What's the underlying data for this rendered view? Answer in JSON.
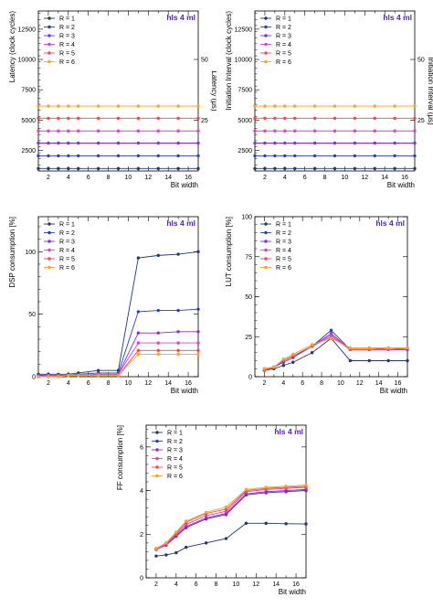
{
  "figure_tag": "hls 4 ml",
  "colors": {
    "R1": "#1f3a6e",
    "R2": "#2b3fc4",
    "R3": "#8a2be2",
    "R4": "#e040c8",
    "R5": "#f04a50",
    "R6": "#ffa21e"
  },
  "chart_data": [
    {
      "type": "line",
      "tag": "hls 4 ml",
      "xlabel": "Bit width",
      "ylabel": "Latency (clock cycles)",
      "y2label": "Latency (μs)",
      "xlim": [
        1,
        17
      ],
      "ylim": [
        800,
        14000
      ],
      "x_ticks": [
        2,
        4,
        6,
        8,
        10,
        12,
        14,
        16
      ],
      "y_ticks": [
        2500,
        5000,
        7500,
        10000,
        12500
      ],
      "y2_ticks": [
        {
          "label": "25",
          "at": 5000
        },
        {
          "label": "50",
          "at": 10000
        }
      ],
      "legend_position": "top-left",
      "x": [
        1,
        2,
        3,
        4,
        5,
        7,
        9,
        11,
        13,
        15,
        17
      ],
      "series": [
        {
          "name": "R = 1",
          "color_key": "R1",
          "values": [
            1000,
            1000,
            1000,
            1000,
            1000,
            1000,
            1000,
            1000,
            1000,
            1000,
            1000
          ]
        },
        {
          "name": "R = 2",
          "color_key": "R2",
          "values": [
            2050,
            2050,
            2050,
            2050,
            2050,
            2050,
            2050,
            2050,
            2050,
            2050,
            2050
          ]
        },
        {
          "name": "R = 3",
          "color_key": "R3",
          "values": [
            3100,
            3100,
            3100,
            3100,
            3100,
            3100,
            3100,
            3100,
            3100,
            3100,
            3100
          ]
        },
        {
          "name": "R = 4",
          "color_key": "R4",
          "values": [
            4100,
            4100,
            4100,
            4100,
            4100,
            4100,
            4100,
            4100,
            4100,
            4100,
            4100
          ]
        },
        {
          "name": "R = 5",
          "color_key": "R5",
          "values": [
            5150,
            5150,
            5150,
            5150,
            5150,
            5150,
            5150,
            5150,
            5150,
            5150,
            5150
          ]
        },
        {
          "name": "R = 6",
          "color_key": "R6",
          "values": [
            6150,
            6150,
            6150,
            6150,
            6150,
            6150,
            6150,
            6150,
            6150,
            6150,
            6150
          ]
        }
      ]
    },
    {
      "type": "line",
      "tag": "hls 4 ml",
      "xlabel": "Bit width",
      "ylabel": "Initiation Interval (clock cycles)",
      "y2label": "Initiation Interval (μs)",
      "xlim": [
        1,
        17
      ],
      "ylim": [
        800,
        14000
      ],
      "x_ticks": [
        2,
        4,
        6,
        8,
        10,
        12,
        14,
        16
      ],
      "y_ticks": [
        2500,
        5000,
        7500,
        10000,
        12500
      ],
      "y2_ticks": [
        {
          "label": "25",
          "at": 5000
        },
        {
          "label": "50",
          "at": 10000
        }
      ],
      "legend_position": "top-left",
      "x": [
        1,
        2,
        3,
        4,
        5,
        7,
        9,
        11,
        13,
        15,
        17
      ],
      "series": [
        {
          "name": "R = 1",
          "color_key": "R1",
          "values": [
            1000,
            1000,
            1000,
            1000,
            1000,
            1000,
            1000,
            1000,
            1000,
            1000,
            1000
          ]
        },
        {
          "name": "R = 2",
          "color_key": "R2",
          "values": [
            2050,
            2050,
            2050,
            2050,
            2050,
            2050,
            2050,
            2050,
            2050,
            2050,
            2050
          ]
        },
        {
          "name": "R = 3",
          "color_key": "R3",
          "values": [
            3100,
            3100,
            3100,
            3100,
            3100,
            3100,
            3100,
            3100,
            3100,
            3100,
            3100
          ]
        },
        {
          "name": "R = 4",
          "color_key": "R4",
          "values": [
            4100,
            4100,
            4100,
            4100,
            4100,
            4100,
            4100,
            4100,
            4100,
            4100,
            4100
          ]
        },
        {
          "name": "R = 5",
          "color_key": "R5",
          "values": [
            5150,
            5150,
            5150,
            5150,
            5150,
            5150,
            5150,
            5150,
            5150,
            5150,
            5150
          ]
        },
        {
          "name": "R = 6",
          "color_key": "R6",
          "values": [
            6150,
            6150,
            6150,
            6150,
            6150,
            6150,
            6150,
            6150,
            6150,
            6150,
            6150
          ]
        }
      ]
    },
    {
      "type": "line",
      "tag": "hls 4 ml",
      "xlabel": "Bit width",
      "ylabel": "DSP consumption [%]",
      "xlim": [
        1,
        17
      ],
      "ylim": [
        0,
        128
      ],
      "x_ticks": [
        2,
        4,
        6,
        8,
        10,
        12,
        14,
        16
      ],
      "y_ticks": [
        0,
        50,
        100
      ],
      "legend_position": "top-left",
      "x": [
        1,
        2,
        3,
        4,
        5,
        7,
        9,
        11,
        13,
        15,
        17
      ],
      "series": [
        {
          "name": "R = 1",
          "color_key": "R1",
          "values": [
            2,
            2,
            2,
            2,
            3,
            5,
            5,
            95,
            97,
            98,
            100
          ]
        },
        {
          "name": "R = 2",
          "color_key": "R2",
          "values": [
            1,
            1,
            1,
            1,
            2,
            3,
            3,
            52,
            53,
            53,
            54
          ]
        },
        {
          "name": "R = 3",
          "color_key": "R3",
          "values": [
            1,
            1,
            1,
            1,
            1,
            2,
            2,
            35,
            35,
            36,
            36
          ]
        },
        {
          "name": "R = 4",
          "color_key": "R4",
          "values": [
            0,
            1,
            1,
            1,
            1,
            2,
            2,
            27,
            27,
            27,
            27
          ]
        },
        {
          "name": "R = 5",
          "color_key": "R5",
          "values": [
            0,
            0,
            1,
            1,
            1,
            1,
            1,
            21,
            21,
            21,
            21
          ]
        },
        {
          "name": "R = 6",
          "color_key": "R6",
          "values": [
            0,
            0,
            0,
            1,
            1,
            1,
            1,
            18,
            18,
            18,
            18
          ]
        }
      ]
    },
    {
      "type": "line",
      "tag": "hls 4 ml",
      "xlabel": "Bit width",
      "ylabel": "LUT consumption [%]",
      "xlim": [
        1,
        17
      ],
      "ylim": [
        0,
        100
      ],
      "x_ticks": [
        2,
        4,
        6,
        8,
        10,
        12,
        14,
        16
      ],
      "y_ticks": [
        0,
        25,
        50,
        75,
        100
      ],
      "legend_position": "top-left",
      "x": [
        2,
        3,
        4,
        5,
        7,
        9,
        11,
        13,
        15,
        17
      ],
      "series": [
        {
          "name": "R = 1",
          "color_key": "R1",
          "values": [
            4,
            5,
            7,
            9,
            15,
            24,
            10,
            10,
            10,
            10
          ]
        },
        {
          "name": "R = 2",
          "color_key": "R2",
          "values": [
            4,
            6,
            9,
            12,
            19,
            29,
            17,
            17,
            17,
            17
          ]
        },
        {
          "name": "R = 3",
          "color_key": "R3",
          "values": [
            4,
            6,
            10,
            13,
            19,
            27,
            17,
            17,
            17,
            17
          ]
        },
        {
          "name": "R = 4",
          "color_key": "R4",
          "values": [
            4,
            6,
            10,
            13,
            19,
            26,
            17,
            17,
            17,
            18
          ]
        },
        {
          "name": "R = 5",
          "color_key": "R5",
          "values": [
            5,
            6,
            10,
            13,
            19,
            25,
            17,
            17,
            18,
            18
          ]
        },
        {
          "name": "R = 6",
          "color_key": "R6",
          "values": [
            5,
            6,
            11,
            14,
            20,
            24,
            18,
            18,
            18,
            18
          ]
        }
      ]
    },
    {
      "type": "line",
      "tag": "hls 4 ml",
      "xlabel": "Bit width",
      "ylabel": "FF consumption [%]",
      "xlim": [
        1,
        17
      ],
      "ylim": [
        0,
        7
      ],
      "x_ticks": [
        2,
        4,
        6,
        8,
        10,
        12,
        14,
        16
      ],
      "y_ticks": [
        0,
        2,
        4,
        6
      ],
      "legend_position": "top-left",
      "x": [
        2,
        3,
        4,
        5,
        7,
        9,
        11,
        13,
        15,
        17
      ],
      "series": [
        {
          "name": "R = 1",
          "color_key": "R1",
          "values": [
            1.0,
            1.05,
            1.15,
            1.4,
            1.6,
            1.8,
            2.5,
            2.5,
            2.48,
            2.47
          ]
        },
        {
          "name": "R = 2",
          "color_key": "R2",
          "values": [
            1.3,
            1.5,
            1.9,
            2.3,
            2.7,
            2.9,
            3.8,
            3.9,
            3.95,
            4.0
          ]
        },
        {
          "name": "R = 3",
          "color_key": "R3",
          "values": [
            1.3,
            1.5,
            1.95,
            2.35,
            2.75,
            2.95,
            3.85,
            3.95,
            4.0,
            4.05
          ]
        },
        {
          "name": "R = 4",
          "color_key": "R4",
          "values": [
            1.3,
            1.55,
            2.0,
            2.45,
            2.85,
            3.05,
            3.95,
            4.05,
            4.1,
            4.15
          ]
        },
        {
          "name": "R = 5",
          "color_key": "R5",
          "values": [
            1.35,
            1.6,
            2.05,
            2.55,
            2.95,
            3.15,
            4.0,
            4.1,
            4.15,
            4.2
          ]
        },
        {
          "name": "R = 6",
          "color_key": "R6",
          "values": [
            1.35,
            1.6,
            2.1,
            2.6,
            3.0,
            3.25,
            4.05,
            4.15,
            4.2,
            4.25
          ]
        }
      ]
    }
  ]
}
